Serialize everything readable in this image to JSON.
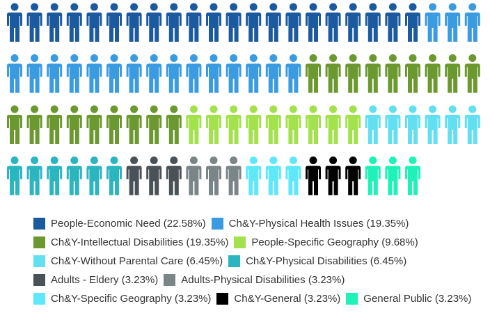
{
  "chart_data": {
    "type": "pictogram",
    "series": [
      {
        "name": "People-Economic Need",
        "value": 22.58,
        "value_label": "(22.58%)",
        "color": "#1c5aa0"
      },
      {
        "name": "Ch&Y-Physical Health Issues",
        "value": 19.35,
        "value_label": "(19.35%)",
        "color": "#3a9be0"
      },
      {
        "name": "Ch&Y-Intellectual Disabilities",
        "value": 19.35,
        "value_label": "(19.35%)",
        "color": "#6b992f"
      },
      {
        "name": "People-Specific Geography",
        "value": 9.68,
        "value_label": "(9.68%)",
        "color": "#a3e24c"
      },
      {
        "name": "Ch&Y-Without Parental Care",
        "value": 6.45,
        "value_label": "(6.45%)",
        "color": "#62e0f2"
      },
      {
        "name": "Ch&Y-Physical Disabilities",
        "value": 6.45,
        "value_label": "(6.45%)",
        "color": "#2bb5bf"
      },
      {
        "name": "Adults - Eldery",
        "value": 3.23,
        "value_label": "(3.23%)",
        "color": "#4a5258"
      },
      {
        "name": "Adults-Physical Disabilities",
        "value": 3.23,
        "value_label": "(3.23%)",
        "color": "#7a8587"
      },
      {
        "name": "Ch&Y-Specific Geography",
        "value": 3.23,
        "value_label": "(3.23%)",
        "color": "#5ee8fa"
      },
      {
        "name": "Ch&Y-General",
        "value": 3.23,
        "value_label": "(3.23%)",
        "color": "#000000"
      },
      {
        "name": "General Public",
        "value": 3.23,
        "value_label": "(3.23%)",
        "color": "#1ff2b8"
      }
    ]
  }
}
